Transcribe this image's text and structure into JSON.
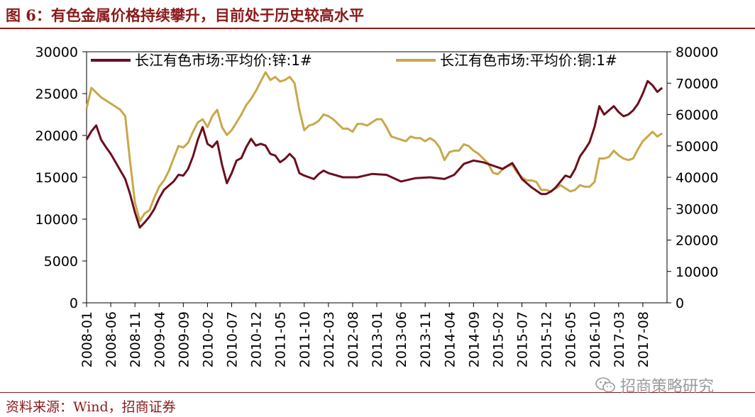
{
  "title": "图 6：有色金属价格持续攀升，目前处于历史较高水平",
  "source": "资料来源：Wind，招商证券",
  "watermark": {
    "text": "招商策略研究",
    "icon": "wechat-icon"
  },
  "colors": {
    "zinc": "#6b0e1e",
    "copper": "#c8a84a",
    "title": "#8b1a1a"
  },
  "chart_data": {
    "type": "line",
    "title": "",
    "xlabel": "",
    "ylabel": "",
    "left_axis": {
      "ticks": [
        0,
        5000,
        10000,
        15000,
        20000,
        25000,
        30000
      ],
      "range": [
        0,
        30000
      ]
    },
    "right_axis": {
      "ticks": [
        0,
        10000,
        20000,
        30000,
        40000,
        50000,
        60000,
        70000,
        80000
      ],
      "range": [
        0,
        80000
      ]
    },
    "x_ticks": [
      "2008-01",
      "2008-06",
      "2008-11",
      "2009-04",
      "2009-09",
      "2010-02",
      "2010-07",
      "2010-12",
      "2011-05",
      "2011-10",
      "2012-03",
      "2012-08",
      "2013-01",
      "2013-06",
      "2013-11",
      "2014-04",
      "2014-09",
      "2015-02",
      "2015-07",
      "2015-12",
      "2016-05",
      "2016-10",
      "2017-03",
      "2017-08"
    ],
    "x_range": [
      "2008-01",
      "2018-01"
    ],
    "grid": false,
    "legend_position": "top",
    "series": [
      {
        "name": "长江有色市场:平均价:锌:1#",
        "axis": "left",
        "points": [
          [
            "2008-01",
            19500
          ],
          [
            "2008-02",
            20500
          ],
          [
            "2008-03",
            21200
          ],
          [
            "2008-04",
            19500
          ],
          [
            "2008-05",
            18600
          ],
          [
            "2008-06",
            17800
          ],
          [
            "2008-07",
            16800
          ],
          [
            "2008-08",
            15800
          ],
          [
            "2008-09",
            14800
          ],
          [
            "2008-10",
            13000
          ],
          [
            "2008-11",
            10800
          ],
          [
            "2008-12",
            9000
          ],
          [
            "2009-01",
            9600
          ],
          [
            "2009-02",
            10300
          ],
          [
            "2009-03",
            11200
          ],
          [
            "2009-04",
            12500
          ],
          [
            "2009-05",
            13500
          ],
          [
            "2009-06",
            14000
          ],
          [
            "2009-07",
            14500
          ],
          [
            "2009-08",
            15300
          ],
          [
            "2009-09",
            15200
          ],
          [
            "2009-10",
            16000
          ],
          [
            "2009-11",
            17500
          ],
          [
            "2009-12",
            19500
          ],
          [
            "2010-01",
            21000
          ],
          [
            "2010-02",
            19000
          ],
          [
            "2010-03",
            18600
          ],
          [
            "2010-04",
            19300
          ],
          [
            "2010-05",
            16500
          ],
          [
            "2010-06",
            14300
          ],
          [
            "2010-07",
            15500
          ],
          [
            "2010-08",
            17000
          ],
          [
            "2010-09",
            17300
          ],
          [
            "2010-10",
            18600
          ],
          [
            "2010-11",
            19600
          ],
          [
            "2010-12",
            18800
          ],
          [
            "2011-01",
            19000
          ],
          [
            "2011-02",
            18800
          ],
          [
            "2011-03",
            17800
          ],
          [
            "2011-04",
            17600
          ],
          [
            "2011-05",
            16800
          ],
          [
            "2011-06",
            17200
          ],
          [
            "2011-07",
            17800
          ],
          [
            "2011-08",
            17200
          ],
          [
            "2011-09",
            15500
          ],
          [
            "2011-10",
            15200
          ],
          [
            "2011-11",
            15000
          ],
          [
            "2011-12",
            14800
          ],
          [
            "2012-01",
            15400
          ],
          [
            "2012-02",
            15800
          ],
          [
            "2012-03",
            15500
          ],
          [
            "2012-06",
            15000
          ],
          [
            "2012-09",
            15000
          ],
          [
            "2012-12",
            15400
          ],
          [
            "2013-03",
            15300
          ],
          [
            "2013-06",
            14500
          ],
          [
            "2013-09",
            14900
          ],
          [
            "2013-12",
            15000
          ],
          [
            "2014-03",
            14800
          ],
          [
            "2014-05",
            15300
          ],
          [
            "2014-07",
            16600
          ],
          [
            "2014-09",
            17000
          ],
          [
            "2014-11",
            16800
          ],
          [
            "2015-01",
            16400
          ],
          [
            "2015-03",
            16000
          ],
          [
            "2015-05",
            16700
          ],
          [
            "2015-06",
            15800
          ],
          [
            "2015-07",
            14800
          ],
          [
            "2015-09",
            13800
          ],
          [
            "2015-11",
            13000
          ],
          [
            "2015-12",
            13000
          ],
          [
            "2016-01",
            13300
          ],
          [
            "2016-02",
            13800
          ],
          [
            "2016-03",
            14500
          ],
          [
            "2016-04",
            15200
          ],
          [
            "2016-05",
            15000
          ],
          [
            "2016-06",
            16000
          ],
          [
            "2016-07",
            17500
          ],
          [
            "2016-08",
            18300
          ],
          [
            "2016-09",
            19200
          ],
          [
            "2016-10",
            21000
          ],
          [
            "2016-11",
            23500
          ],
          [
            "2016-12",
            22500
          ],
          [
            "2017-01",
            23000
          ],
          [
            "2017-02",
            23500
          ],
          [
            "2017-03",
            22800
          ],
          [
            "2017-04",
            22300
          ],
          [
            "2017-05",
            22500
          ],
          [
            "2017-06",
            23000
          ],
          [
            "2017-07",
            23800
          ],
          [
            "2017-08",
            25000
          ],
          [
            "2017-09",
            26500
          ],
          [
            "2017-10",
            26000
          ],
          [
            "2017-11",
            25200
          ],
          [
            "2017-12",
            25700
          ]
        ]
      },
      {
        "name": "长江有色市场:平均价:铜:1#",
        "axis": "right",
        "points": [
          [
            "2008-01",
            62000
          ],
          [
            "2008-02",
            68500
          ],
          [
            "2008-03",
            67000
          ],
          [
            "2008-04",
            65500
          ],
          [
            "2008-05",
            64500
          ],
          [
            "2008-06",
            63500
          ],
          [
            "2008-07",
            62500
          ],
          [
            "2008-08",
            61500
          ],
          [
            "2008-09",
            59500
          ],
          [
            "2008-10",
            45000
          ],
          [
            "2008-11",
            32000
          ],
          [
            "2008-12",
            26000
          ],
          [
            "2009-01",
            28500
          ],
          [
            "2009-02",
            29500
          ],
          [
            "2009-03",
            33500
          ],
          [
            "2009-04",
            37000
          ],
          [
            "2009-05",
            39000
          ],
          [
            "2009-06",
            42000
          ],
          [
            "2009-07",
            46000
          ],
          [
            "2009-08",
            50000
          ],
          [
            "2009-09",
            49500
          ],
          [
            "2009-10",
            51000
          ],
          [
            "2009-11",
            54500
          ],
          [
            "2009-12",
            57500
          ],
          [
            "2010-01",
            58500
          ],
          [
            "2010-02",
            56000
          ],
          [
            "2010-03",
            59500
          ],
          [
            "2010-04",
            61500
          ],
          [
            "2010-05",
            56000
          ],
          [
            "2010-06",
            53500
          ],
          [
            "2010-07",
            55000
          ],
          [
            "2010-08",
            57500
          ],
          [
            "2010-09",
            60000
          ],
          [
            "2010-10",
            63000
          ],
          [
            "2010-11",
            65000
          ],
          [
            "2010-12",
            67500
          ],
          [
            "2011-01",
            70500
          ],
          [
            "2011-02",
            73500
          ],
          [
            "2011-03",
            71000
          ],
          [
            "2011-04",
            72000
          ],
          [
            "2011-05",
            70500
          ],
          [
            "2011-06",
            71000
          ],
          [
            "2011-07",
            72000
          ],
          [
            "2011-08",
            70000
          ],
          [
            "2011-09",
            61500
          ],
          [
            "2011-10",
            55000
          ],
          [
            "2011-11",
            56500
          ],
          [
            "2011-12",
            57000
          ],
          [
            "2012-01",
            58000
          ],
          [
            "2012-02",
            60000
          ],
          [
            "2012-03",
            59500
          ],
          [
            "2012-04",
            58500
          ],
          [
            "2012-05",
            57000
          ],
          [
            "2012-06",
            55500
          ],
          [
            "2012-07",
            55500
          ],
          [
            "2012-08",
            54500
          ],
          [
            "2012-09",
            57000
          ],
          [
            "2012-10",
            57000
          ],
          [
            "2012-11",
            56500
          ],
          [
            "2012-12",
            57500
          ],
          [
            "2013-01",
            58500
          ],
          [
            "2013-02",
            58500
          ],
          [
            "2013-03",
            56000
          ],
          [
            "2013-04",
            53000
          ],
          [
            "2013-05",
            52500
          ],
          [
            "2013-06",
            52000
          ],
          [
            "2013-07",
            51500
          ],
          [
            "2013-08",
            53000
          ],
          [
            "2013-09",
            52500
          ],
          [
            "2013-10",
            52500
          ],
          [
            "2013-11",
            51500
          ],
          [
            "2013-12",
            52500
          ],
          [
            "2014-01",
            51500
          ],
          [
            "2014-02",
            49500
          ],
          [
            "2014-03",
            45500
          ],
          [
            "2014-04",
            48000
          ],
          [
            "2014-05",
            48500
          ],
          [
            "2014-06",
            48500
          ],
          [
            "2014-07",
            50500
          ],
          [
            "2014-08",
            50000
          ],
          [
            "2014-09",
            48500
          ],
          [
            "2014-10",
            47500
          ],
          [
            "2014-11",
            46000
          ],
          [
            "2014-12",
            44500
          ],
          [
            "2015-01",
            41500
          ],
          [
            "2015-02",
            41000
          ],
          [
            "2015-03",
            42500
          ],
          [
            "2015-04",
            43500
          ],
          [
            "2015-05",
            44000
          ],
          [
            "2015-06",
            41500
          ],
          [
            "2015-07",
            40000
          ],
          [
            "2015-08",
            39000
          ],
          [
            "2015-09",
            39000
          ],
          [
            "2015-10",
            38500
          ],
          [
            "2015-11",
            36000
          ],
          [
            "2015-12",
            36000
          ],
          [
            "2016-01",
            35500
          ],
          [
            "2016-02",
            36500
          ],
          [
            "2016-03",
            37500
          ],
          [
            "2016-04",
            36500
          ],
          [
            "2016-05",
            35500
          ],
          [
            "2016-06",
            36000
          ],
          [
            "2016-07",
            37500
          ],
          [
            "2016-08",
            37000
          ],
          [
            "2016-09",
            37000
          ],
          [
            "2016-10",
            38500
          ],
          [
            "2016-11",
            46000
          ],
          [
            "2016-12",
            46000
          ],
          [
            "2017-01",
            46500
          ],
          [
            "2017-02",
            48500
          ],
          [
            "2017-03",
            47000
          ],
          [
            "2017-04",
            46000
          ],
          [
            "2017-05",
            45500
          ],
          [
            "2017-06",
            46000
          ],
          [
            "2017-07",
            49000
          ],
          [
            "2017-08",
            51500
          ],
          [
            "2017-09",
            53000
          ],
          [
            "2017-10",
            54500
          ],
          [
            "2017-11",
            53000
          ],
          [
            "2017-12",
            54000
          ]
        ]
      }
    ]
  }
}
